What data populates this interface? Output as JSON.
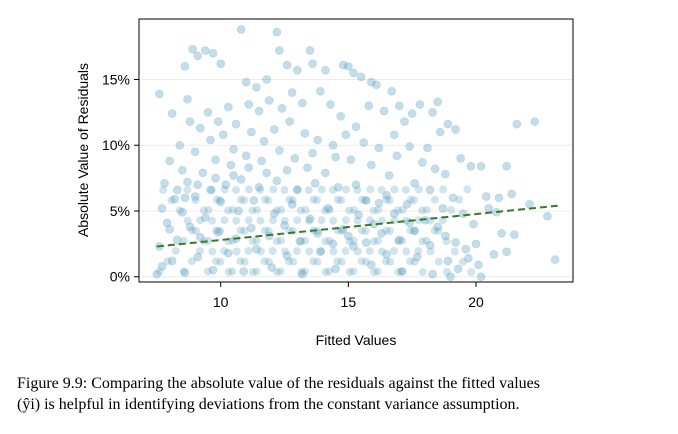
{
  "chart_data": {
    "type": "scatter",
    "title": "",
    "xlabel": "Fitted Values",
    "ylabel": "Absolute Value of Residuals",
    "xlim": [
      6.8,
      23.8
    ],
    "ylim": [
      -0.004,
      0.196
    ],
    "xticks": [
      {
        "value": 10,
        "label": "10"
      },
      {
        "value": 15,
        "label": "15"
      },
      {
        "value": 20,
        "label": "20"
      }
    ],
    "yticks": [
      {
        "value": 0.0,
        "label": "0%"
      },
      {
        "value": 0.05,
        "label": "5%"
      },
      {
        "value": 0.1,
        "label": "10%"
      },
      {
        "value": 0.15,
        "label": "15%"
      }
    ],
    "grid": true,
    "point_color": "#569EBF",
    "trend_color": "#3A7A22",
    "trend_line": {
      "x": [
        7.5,
        23.2
      ],
      "y": [
        0.023,
        0.054
      ]
    },
    "series": [
      {
        "values": [
          [
            7.6,
            0.139
          ],
          [
            8.1,
            0.124
          ],
          [
            8.6,
            0.16
          ],
          [
            8.7,
            0.135
          ],
          [
            8.9,
            0.173
          ],
          [
            9.1,
            0.168
          ],
          [
            9.4,
            0.172
          ],
          [
            9.7,
            0.17
          ],
          [
            10.0,
            0.162
          ],
          [
            10.8,
            0.188
          ],
          [
            11.0,
            0.148
          ],
          [
            11.4,
            0.144
          ],
          [
            11.8,
            0.15
          ],
          [
            12.2,
            0.186
          ],
          [
            12.3,
            0.172
          ],
          [
            12.6,
            0.161
          ],
          [
            13.0,
            0.157
          ],
          [
            13.5,
            0.172
          ],
          [
            13.6,
            0.162
          ],
          [
            14.1,
            0.157
          ],
          [
            14.8,
            0.161
          ],
          [
            15.0,
            0.16
          ],
          [
            15.2,
            0.155
          ],
          [
            15.5,
            0.152
          ],
          [
            15.9,
            0.148
          ],
          [
            16.1,
            0.146
          ],
          [
            16.7,
            0.141
          ],
          [
            17.0,
            0.13
          ],
          [
            17.5,
            0.124
          ],
          [
            17.8,
            0.131
          ],
          [
            18.3,
            0.125
          ],
          [
            18.5,
            0.133
          ],
          [
            18.9,
            0.116
          ],
          [
            19.2,
            0.112
          ],
          [
            19.4,
            0.09
          ],
          [
            19.8,
            0.084
          ],
          [
            20.2,
            0.084
          ],
          [
            20.4,
            0.061
          ],
          [
            20.5,
            0.052
          ],
          [
            20.9,
            0.06
          ],
          [
            20.8,
            0.049
          ],
          [
            21.2,
            0.084
          ],
          [
            21.4,
            0.063
          ],
          [
            21.6,
            0.116
          ],
          [
            21.5,
            0.032
          ],
          [
            22.1,
            0.055
          ],
          [
            22.3,
            0.118
          ],
          [
            22.8,
            0.046
          ],
          [
            23.1,
            0.013
          ],
          [
            20.0,
            0.025
          ],
          [
            20.2,
            0.0
          ],
          [
            19.6,
            0.021
          ],
          [
            19.0,
            0.0
          ],
          [
            20.7,
            0.017
          ],
          [
            21.2,
            0.019
          ],
          [
            21.0,
            0.033
          ],
          [
            18.8,
            0.078
          ],
          [
            18.6,
            0.11
          ],
          [
            18.1,
            0.098
          ],
          [
            17.2,
            0.118
          ],
          [
            16.8,
            0.108
          ],
          [
            16.4,
            0.126
          ],
          [
            15.8,
            0.13
          ],
          [
            15.3,
            0.114
          ],
          [
            14.7,
            0.122
          ],
          [
            14.3,
            0.131
          ],
          [
            13.9,
            0.141
          ],
          [
            13.2,
            0.132
          ],
          [
            12.8,
            0.14
          ],
          [
            12.4,
            0.128
          ],
          [
            11.9,
            0.134
          ],
          [
            11.5,
            0.126
          ],
          [
            11.1,
            0.131
          ],
          [
            10.6,
            0.116
          ],
          [
            10.3,
            0.129
          ],
          [
            9.9,
            0.118
          ],
          [
            9.5,
            0.125
          ],
          [
            9.2,
            0.113
          ],
          [
            8.8,
            0.118
          ],
          [
            8.4,
            0.1
          ],
          [
            8.0,
            0.088
          ],
          [
            7.8,
            0.071
          ],
          [
            7.7,
            0.052
          ],
          [
            7.9,
            0.041
          ],
          [
            8.3,
            0.066
          ],
          [
            8.5,
            0.081
          ],
          [
            9.0,
            0.095
          ],
          [
            9.6,
            0.104
          ],
          [
            10.1,
            0.108
          ],
          [
            10.5,
            0.097
          ],
          [
            11.2,
            0.11
          ],
          [
            11.7,
            0.103
          ],
          [
            12.1,
            0.112
          ],
          [
            12.7,
            0.118
          ],
          [
            13.3,
            0.109
          ],
          [
            13.8,
            0.104
          ],
          [
            14.4,
            0.1
          ],
          [
            14.9,
            0.108
          ],
          [
            15.6,
            0.102
          ],
          [
            16.2,
            0.098
          ],
          [
            16.9,
            0.092
          ],
          [
            17.4,
            0.099
          ],
          [
            17.9,
            0.087
          ],
          [
            18.4,
            0.082
          ],
          [
            18.2,
            0.066
          ],
          [
            17.6,
            0.071
          ],
          [
            16.6,
            0.077
          ],
          [
            15.9,
            0.085
          ],
          [
            15.1,
            0.089
          ],
          [
            14.5,
            0.091
          ],
          [
            13.6,
            0.094
          ],
          [
            12.9,
            0.09
          ],
          [
            12.3,
            0.096
          ],
          [
            11.6,
            0.088
          ],
          [
            11.0,
            0.092
          ],
          [
            10.4,
            0.085
          ],
          [
            9.8,
            0.089
          ],
          [
            9.3,
            0.079
          ],
          [
            8.7,
            0.072
          ],
          [
            8.2,
            0.059
          ],
          [
            19.1,
            0.06
          ],
          [
            19.5,
            0.048
          ],
          [
            19.9,
            0.04
          ],
          [
            18.7,
            0.052
          ],
          [
            18.0,
            0.043
          ],
          [
            17.3,
            0.055
          ],
          [
            16.5,
            0.062
          ],
          [
            15.7,
            0.058
          ],
          [
            14.6,
            0.068
          ],
          [
            13.7,
            0.071
          ],
          [
            13.0,
            0.066
          ],
          [
            12.2,
            0.073
          ],
          [
            11.5,
            0.068
          ],
          [
            10.8,
            0.074
          ],
          [
            10.2,
            0.07
          ],
          [
            9.6,
            0.066
          ],
          [
            9.0,
            0.061
          ],
          [
            8.5,
            0.049
          ],
          [
            8.0,
            0.036
          ],
          [
            7.6,
            0.023
          ],
          [
            7.7,
            0.008
          ],
          [
            7.5,
            0.002
          ],
          [
            8.1,
            0.012
          ],
          [
            8.6,
            0.003
          ],
          [
            9.1,
            0.015
          ],
          [
            9.7,
            0.005
          ],
          [
            10.3,
            0.018
          ],
          [
            10.9,
            0.004
          ],
          [
            11.4,
            0.021
          ],
          [
            12.0,
            0.007
          ],
          [
            12.6,
            0.016
          ],
          [
            13.2,
            0.002
          ],
          [
            13.9,
            0.019
          ],
          [
            14.5,
            0.006
          ],
          [
            15.2,
            0.023
          ],
          [
            15.9,
            0.009
          ],
          [
            16.5,
            0.017
          ],
          [
            17.1,
            0.004
          ],
          [
            17.7,
            0.015
          ],
          [
            18.3,
            0.002
          ],
          [
            18.9,
            0.012
          ],
          [
            19.3,
            0.006
          ],
          [
            16.0,
            0.04
          ],
          [
            15.4,
            0.047
          ],
          [
            14.8,
            0.036
          ],
          [
            14.2,
            0.052
          ],
          [
            13.5,
            0.044
          ],
          [
            12.8,
            0.055
          ],
          [
            12.1,
            0.048
          ],
          [
            11.3,
            0.058
          ],
          [
            10.7,
            0.05
          ],
          [
            10.0,
            0.057
          ],
          [
            9.4,
            0.045
          ],
          [
            8.8,
            0.038
          ],
          [
            8.3,
            0.028
          ],
          [
            9.2,
            0.03
          ],
          [
            9.9,
            0.034
          ],
          [
            10.6,
            0.029
          ],
          [
            11.2,
            0.037
          ],
          [
            11.9,
            0.031
          ],
          [
            12.5,
            0.039
          ],
          [
            13.1,
            0.027
          ],
          [
            13.8,
            0.033
          ],
          [
            14.4,
            0.025
          ],
          [
            15.0,
            0.031
          ],
          [
            15.7,
            0.026
          ],
          [
            16.3,
            0.033
          ],
          [
            17.0,
            0.028
          ],
          [
            17.6,
            0.035
          ],
          [
            18.2,
            0.024
          ],
          [
            18.8,
            0.031
          ],
          [
            19.2,
            0.026
          ],
          [
            16.8,
            0.048
          ],
          [
            17.4,
            0.041
          ],
          [
            18.5,
            0.038
          ],
          [
            19.7,
            0.014
          ],
          [
            20.1,
            0.009
          ],
          [
            16.2,
            0.056
          ],
          [
            15.3,
            0.07
          ],
          [
            14.1,
            0.079
          ],
          [
            13.4,
            0.083
          ],
          [
            12.6,
            0.081
          ],
          [
            11.8,
            0.079
          ],
          [
            11.1,
            0.083
          ],
          [
            10.5,
            0.077
          ],
          [
            9.8,
            0.075
          ],
          [
            9.1,
            0.07
          ],
          [
            8.6,
            0.06
          ]
        ]
      }
    ]
  },
  "caption": {
    "line1": "Figure 9.9: Comparing the absolute value of the residuals against the fitted values",
    "line2": "(ŷi) is helpful in identifying deviations from the constant variance assumption."
  }
}
